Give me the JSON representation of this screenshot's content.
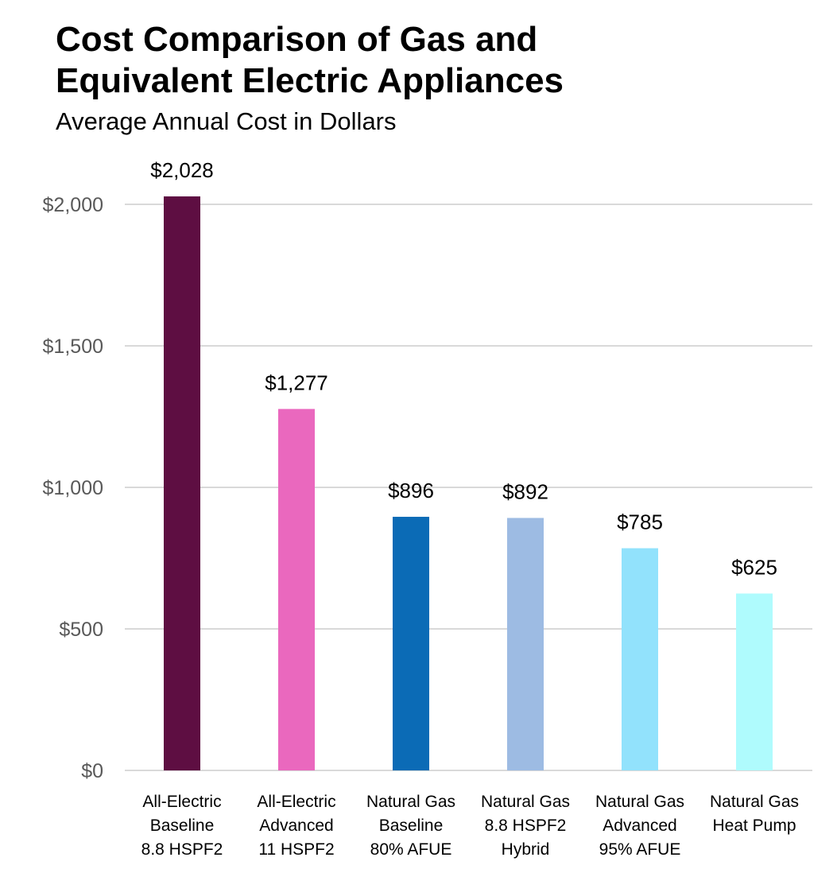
{
  "chart_data": {
    "type": "bar",
    "title_lines": [
      "Cost Comparison of Gas and",
      "Equivalent Electric Appliances"
    ],
    "subtitle": "Average Annual Cost in Dollars",
    "xlabel": "",
    "ylabel": "",
    "ylim": [
      0,
      2000
    ],
    "y_ticks": [
      {
        "value": 0,
        "label": "$0"
      },
      {
        "value": 500,
        "label": "$500"
      },
      {
        "value": 1000,
        "label": "$1,000"
      },
      {
        "value": 1500,
        "label": "$1,500"
      },
      {
        "value": 2000,
        "label": "$2,000"
      }
    ],
    "grid": true,
    "legend": "none",
    "categories": [
      [
        "All-Electric",
        "Baseline",
        "8.8 HSPF2"
      ],
      [
        "All-Electric",
        "Advanced",
        "11 HSPF2"
      ],
      [
        "Natural Gas",
        "Baseline",
        "80% AFUE"
      ],
      [
        "Natural Gas",
        "8.8 HSPF2",
        "Hybrid"
      ],
      [
        "Natural Gas",
        "Advanced",
        "95% AFUE"
      ],
      [
        "Natural Gas",
        "Heat Pump"
      ]
    ],
    "values": [
      2028,
      1277,
      896,
      892,
      785,
      625
    ],
    "data_labels": [
      "$2,028",
      "$1,277",
      "$896",
      "$892",
      "$785",
      "$625"
    ],
    "colors": [
      "#5e0e42",
      "#ea68be",
      "#0b6bb6",
      "#9dbbe3",
      "#92e2fc",
      "#affbfd"
    ],
    "gridline_color": "#d9d9d9",
    "tick_label_color": "#595959"
  }
}
